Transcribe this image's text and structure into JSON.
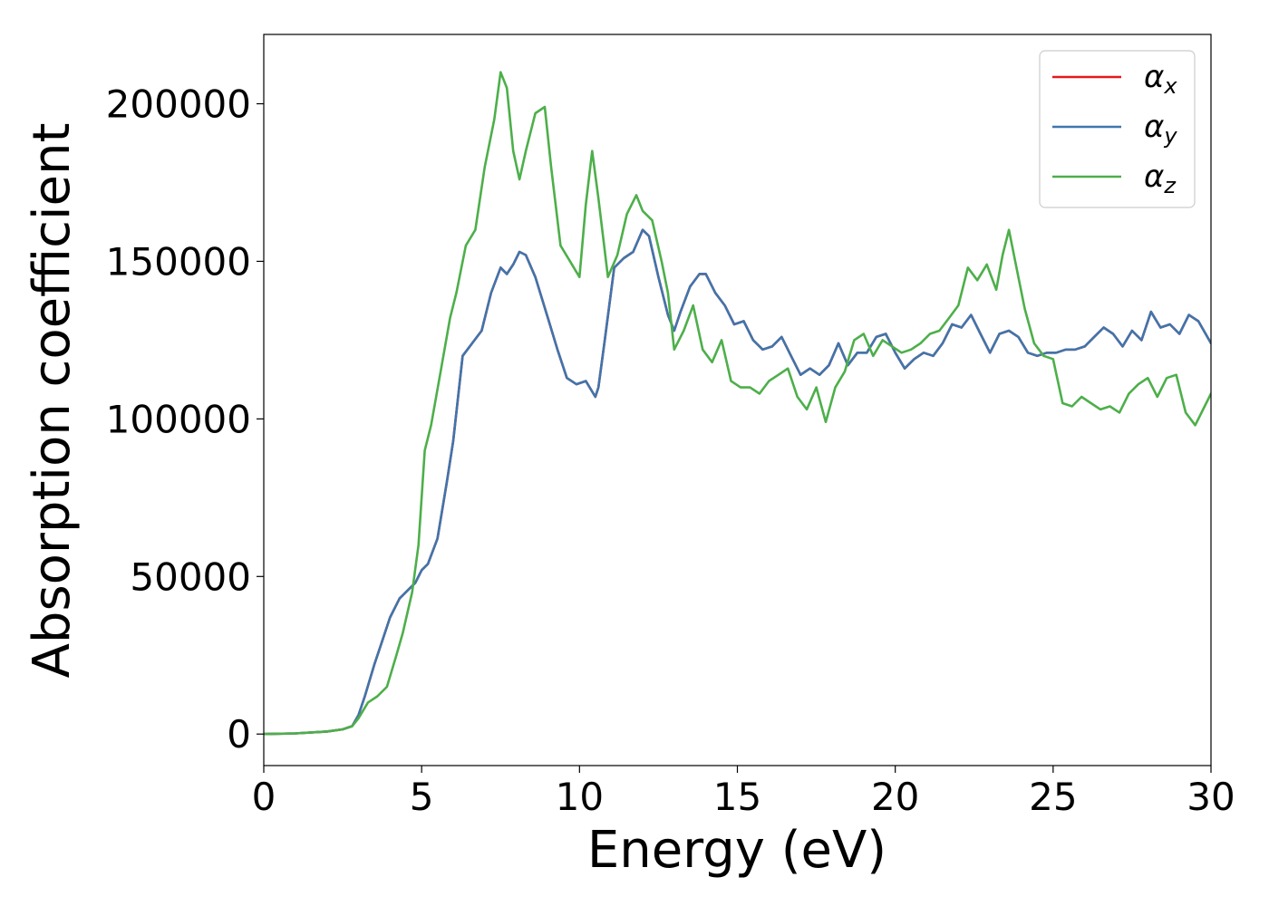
{
  "chart_data": {
    "type": "line",
    "xlabel": "Energy (eV)",
    "ylabel": "Absorption coefficient",
    "xlim": [
      0,
      30
    ],
    "ylim": [
      -10000,
      222000
    ],
    "xticks": [
      0,
      5,
      10,
      15,
      20,
      25,
      30
    ],
    "yticks": [
      0,
      50000,
      100000,
      150000,
      200000
    ],
    "grid": false,
    "legend_position": "top-right",
    "series": [
      {
        "name": "α",
        "sub": "x",
        "color": "#e41a1c",
        "x": [
          0,
          1,
          2,
          2.5,
          2.8,
          3.0,
          3.2,
          3.5,
          3.7,
          4.0,
          4.3,
          4.6,
          4.8,
          5.0,
          5.2,
          5.5,
          5.8,
          6.0,
          6.3,
          6.6,
          6.9,
          7.2,
          7.5,
          7.7,
          7.9,
          8.1,
          8.3,
          8.6,
          9.0,
          9.3,
          9.6,
          9.9,
          10.2,
          10.5,
          10.6,
          10.8,
          11.1,
          11.4,
          11.7,
          12.0,
          12.2,
          12.5,
          12.8,
          13.0,
          13.2,
          13.5,
          13.8,
          14.0,
          14.3,
          14.6,
          14.9,
          15.2,
          15.5,
          15.8,
          16.1,
          16.4,
          16.7,
          17.0,
          17.3,
          17.6,
          17.9,
          18.2,
          18.5,
          18.8,
          19.1,
          19.4,
          19.7,
          20.0,
          20.3,
          20.6,
          20.9,
          21.2,
          21.5,
          21.8,
          22.1,
          22.4,
          22.7,
          23.0,
          23.3,
          23.6,
          23.9,
          24.2,
          24.5,
          24.8,
          25.1,
          25.4,
          25.7,
          26.0,
          26.3,
          26.6,
          26.9,
          27.2,
          27.5,
          27.8,
          28.1,
          28.4,
          28.7,
          29.0,
          29.3,
          29.6,
          30.0
        ],
        "y": [
          0,
          200,
          800,
          1500,
          2500,
          6000,
          12000,
          22000,
          28000,
          37000,
          43000,
          46000,
          48000,
          52000,
          54000,
          62000,
          80000,
          93000,
          120000,
          124000,
          128000,
          140000,
          148000,
          146000,
          149000,
          153000,
          152000,
          145000,
          132000,
          122000,
          113000,
          111000,
          112000,
          107000,
          110000,
          125000,
          148000,
          151000,
          153000,
          160000,
          158000,
          145000,
          133000,
          128000,
          134000,
          142000,
          146000,
          146000,
          140000,
          136000,
          130000,
          131000,
          125000,
          122000,
          123000,
          126000,
          120000,
          114000,
          116000,
          114000,
          117000,
          124000,
          117000,
          121000,
          121000,
          126000,
          127000,
          121000,
          116000,
          119000,
          121000,
          120000,
          124000,
          130000,
          129000,
          133000,
          127000,
          121000,
          127000,
          128000,
          126000,
          121000,
          120000,
          121000,
          121000,
          122000,
          122000,
          123000,
          126000,
          129000,
          127000,
          123000,
          128000,
          125000,
          134000,
          129000,
          130000,
          127000,
          133000,
          131000,
          124000
        ]
      },
      {
        "name": "α",
        "sub": "y",
        "color": "#3f75ac",
        "x": [
          0,
          1,
          2,
          2.5,
          2.8,
          3.0,
          3.2,
          3.5,
          3.7,
          4.0,
          4.3,
          4.6,
          4.8,
          5.0,
          5.2,
          5.5,
          5.8,
          6.0,
          6.3,
          6.6,
          6.9,
          7.2,
          7.5,
          7.7,
          7.9,
          8.1,
          8.3,
          8.6,
          9.0,
          9.3,
          9.6,
          9.9,
          10.2,
          10.5,
          10.6,
          10.8,
          11.1,
          11.4,
          11.7,
          12.0,
          12.2,
          12.5,
          12.8,
          13.0,
          13.2,
          13.5,
          13.8,
          14.0,
          14.3,
          14.6,
          14.9,
          15.2,
          15.5,
          15.8,
          16.1,
          16.4,
          16.7,
          17.0,
          17.3,
          17.6,
          17.9,
          18.2,
          18.5,
          18.8,
          19.1,
          19.4,
          19.7,
          20.0,
          20.3,
          20.6,
          20.9,
          21.2,
          21.5,
          21.8,
          22.1,
          22.4,
          22.7,
          23.0,
          23.3,
          23.6,
          23.9,
          24.2,
          24.5,
          24.8,
          25.1,
          25.4,
          25.7,
          26.0,
          26.3,
          26.6,
          26.9,
          27.2,
          27.5,
          27.8,
          28.1,
          28.4,
          28.7,
          29.0,
          29.3,
          29.6,
          30.0
        ],
        "y": [
          0,
          200,
          800,
          1500,
          2500,
          6000,
          12000,
          22000,
          28000,
          37000,
          43000,
          46000,
          48000,
          52000,
          54000,
          62000,
          80000,
          93000,
          120000,
          124000,
          128000,
          140000,
          148000,
          146000,
          149000,
          153000,
          152000,
          145000,
          132000,
          122000,
          113000,
          111000,
          112000,
          107000,
          110000,
          125000,
          148000,
          151000,
          153000,
          160000,
          158000,
          145000,
          133000,
          128000,
          134000,
          142000,
          146000,
          146000,
          140000,
          136000,
          130000,
          131000,
          125000,
          122000,
          123000,
          126000,
          120000,
          114000,
          116000,
          114000,
          117000,
          124000,
          117000,
          121000,
          121000,
          126000,
          127000,
          121000,
          116000,
          119000,
          121000,
          120000,
          124000,
          130000,
          129000,
          133000,
          127000,
          121000,
          127000,
          128000,
          126000,
          121000,
          120000,
          121000,
          121000,
          122000,
          122000,
          123000,
          126000,
          129000,
          127000,
          123000,
          128000,
          125000,
          134000,
          129000,
          130000,
          127000,
          133000,
          131000,
          124000
        ]
      },
      {
        "name": "α",
        "sub": "z",
        "color": "#4daf4a",
        "x": [
          0,
          1,
          2,
          2.5,
          2.8,
          3.0,
          3.3,
          3.6,
          3.9,
          4.2,
          4.4,
          4.7,
          4.9,
          5.1,
          5.3,
          5.6,
          5.9,
          6.1,
          6.4,
          6.7,
          7.0,
          7.3,
          7.5,
          7.7,
          7.9,
          8.1,
          8.3,
          8.6,
          8.9,
          9.1,
          9.4,
          9.7,
          10.0,
          10.2,
          10.4,
          10.6,
          10.9,
          11.2,
          11.5,
          11.8,
          12.0,
          12.3,
          12.6,
          12.8,
          13.0,
          13.3,
          13.6,
          13.9,
          14.2,
          14.5,
          14.8,
          15.1,
          15.4,
          15.7,
          16.0,
          16.3,
          16.6,
          16.9,
          17.2,
          17.5,
          17.8,
          18.1,
          18.4,
          18.7,
          19.0,
          19.3,
          19.6,
          19.9,
          20.2,
          20.5,
          20.8,
          21.1,
          21.4,
          21.7,
          22.0,
          22.3,
          22.6,
          22.9,
          23.2,
          23.4,
          23.6,
          23.8,
          24.1,
          24.4,
          24.7,
          25.0,
          25.3,
          25.6,
          25.9,
          26.2,
          26.5,
          26.8,
          27.1,
          27.4,
          27.7,
          28.0,
          28.3,
          28.6,
          28.9,
          29.2,
          29.5,
          29.8,
          30.0
        ],
        "y": [
          0,
          200,
          800,
          1500,
          2500,
          5000,
          10000,
          12000,
          15000,
          25000,
          32000,
          45000,
          60000,
          90000,
          98000,
          115000,
          132000,
          140000,
          155000,
          160000,
          180000,
          195000,
          210000,
          205000,
          185000,
          176000,
          185000,
          197000,
          199000,
          180000,
          155000,
          150000,
          145000,
          168000,
          185000,
          170000,
          145000,
          152000,
          165000,
          171000,
          166000,
          163000,
          150000,
          140000,
          122000,
          128000,
          136000,
          122000,
          118000,
          125000,
          112000,
          110000,
          110000,
          108000,
          112000,
          114000,
          116000,
          107000,
          103000,
          110000,
          99000,
          110000,
          115000,
          125000,
          127000,
          120000,
          125000,
          123000,
          121000,
          122000,
          124000,
          127000,
          128000,
          132000,
          136000,
          148000,
          144000,
          149000,
          141000,
          152000,
          160000,
          150000,
          135000,
          124000,
          120000,
          119000,
          105000,
          104000,
          107000,
          105000,
          103000,
          104000,
          102000,
          108000,
          111000,
          113000,
          107000,
          113000,
          114000,
          102000,
          98000,
          104000,
          108000
        ]
      }
    ]
  }
}
